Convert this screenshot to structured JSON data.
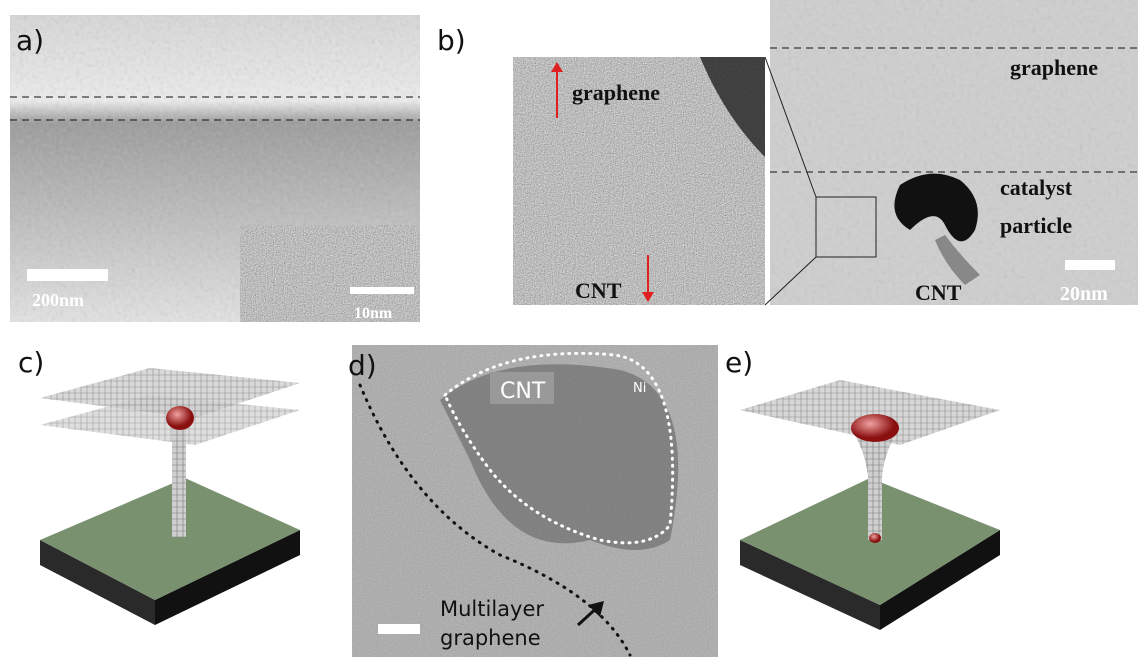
{
  "panel_a": {
    "label": "a)",
    "scale_bar": "200nm",
    "inset_scale_bar": "10nm"
  },
  "panel_b": {
    "label": "b)",
    "inset": {
      "top_label": "graphene",
      "bottom_label": "CNT"
    },
    "main": {
      "graphene": "graphene",
      "catalyst_lines": [
        "catalyst",
        "particle"
      ],
      "cnt": "CNT",
      "scale_bar": "20nm"
    }
  },
  "panel_c": {
    "label": "c)"
  },
  "panel_d": {
    "label": "d)",
    "cnt": "CNT",
    "ni": "Ni",
    "annotation_lines": [
      "Multilayer",
      "graphene"
    ]
  },
  "panel_e": {
    "label": "e)"
  }
}
